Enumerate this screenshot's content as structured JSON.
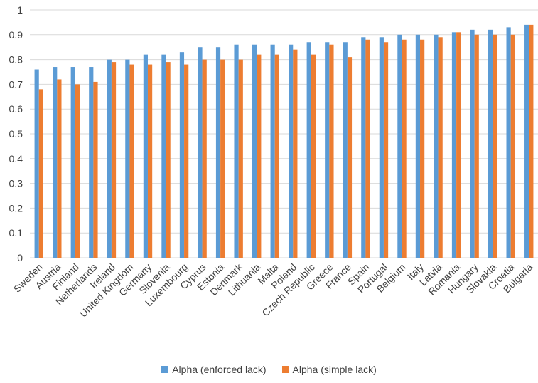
{
  "chart_data": {
    "type": "bar",
    "categories": [
      "Sweden",
      "Austria",
      "Finland",
      "Netherlands",
      "Ireland",
      "United Kingdom",
      "Germany",
      "Slovenia",
      "Luxembourg",
      "Cyprus",
      "Estonia",
      "Denmark",
      "Lithuania",
      "Malta",
      "Poland",
      "Czech Republic",
      "Greece",
      "France",
      "Spain",
      "Portugal",
      "Belgium",
      "Italy",
      "Latvia",
      "Romania",
      "Hungary",
      "Slovakia",
      "Croatia",
      "Bulgaria"
    ],
    "series": [
      {
        "name": "Alpha (enforced lack)",
        "color": "#5B9BD5",
        "values": [
          0.76,
          0.77,
          0.77,
          0.77,
          0.8,
          0.8,
          0.82,
          0.82,
          0.83,
          0.85,
          0.85,
          0.86,
          0.86,
          0.86,
          0.86,
          0.87,
          0.87,
          0.87,
          0.89,
          0.89,
          0.9,
          0.9,
          0.9,
          0.91,
          0.92,
          0.92,
          0.93,
          0.94
        ]
      },
      {
        "name": "Alpha (simple lack)",
        "color": "#ED7D31",
        "values": [
          0.68,
          0.72,
          0.7,
          0.71,
          0.79,
          0.78,
          0.78,
          0.79,
          0.78,
          0.8,
          0.8,
          0.8,
          0.82,
          0.82,
          0.84,
          0.82,
          0.86,
          0.81,
          0.88,
          0.87,
          0.88,
          0.88,
          0.89,
          0.91,
          0.9,
          0.9,
          0.9,
          0.94
        ]
      }
    ],
    "ylim": [
      0,
      1
    ],
    "yticks": [
      "0",
      "0.1",
      "0.2",
      "0.3",
      "0.4",
      "0.5",
      "0.6",
      "0.7",
      "0.8",
      "0.9",
      "1"
    ],
    "grid": true,
    "legend_position": "bottom"
  }
}
